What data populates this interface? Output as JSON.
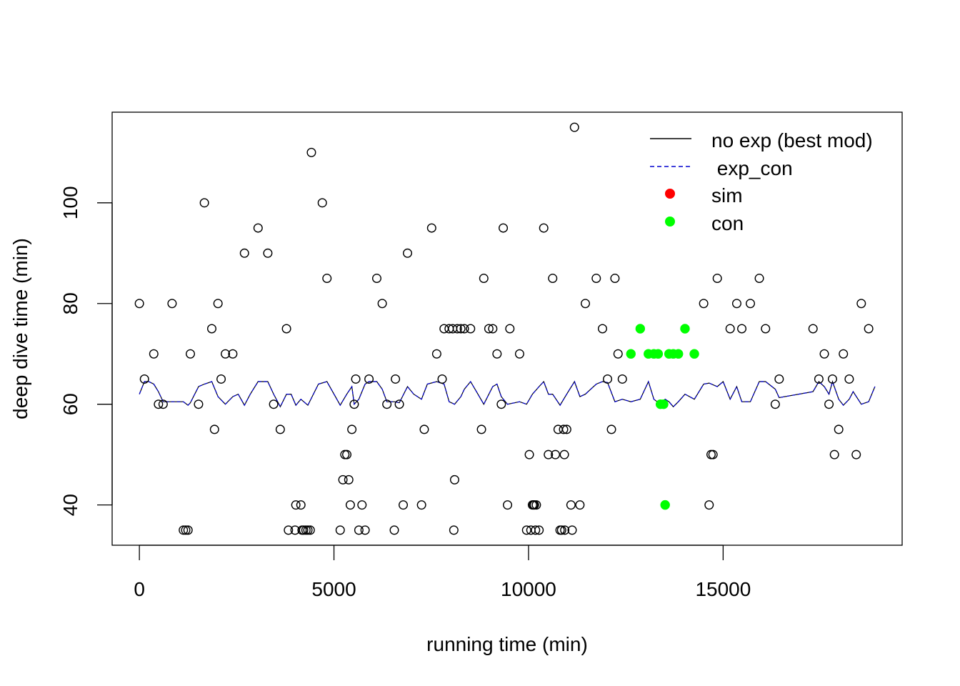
{
  "chart_data": {
    "type": "scatter",
    "title": "",
    "xlabel": "running time (min)",
    "ylabel": "deep dive time (min)",
    "xlim": [
      -700,
      19600
    ],
    "ylim": [
      32,
      118
    ],
    "xticks": [
      0,
      5000,
      10000,
      15000
    ],
    "yticks": [
      40,
      60,
      80,
      100
    ],
    "grid": false,
    "legend_position": "top-right",
    "legend": [
      {
        "label": "no exp (best mod)",
        "kind": "line",
        "color": "#000000"
      },
      {
        "label": " exp_con",
        "kind": "dashed-line",
        "color": "#0000cd"
      },
      {
        "label": "sim",
        "kind": "filled-point",
        "color": "#ff0000"
      },
      {
        "label": "con",
        "kind": "filled-point",
        "color": "#00ff00"
      }
    ],
    "series": [
      {
        "kind": "open-points",
        "color": "#000000",
        "points": [
          [
            0,
            80
          ],
          [
            130,
            65
          ],
          [
            370,
            70
          ],
          [
            490,
            60
          ],
          [
            610,
            60
          ],
          [
            840,
            80
          ],
          [
            1130,
            35
          ],
          [
            1190,
            35
          ],
          [
            1250,
            35
          ],
          [
            1310,
            70
          ],
          [
            1520,
            60
          ],
          [
            1670,
            100
          ],
          [
            1860,
            75
          ],
          [
            1930,
            55
          ],
          [
            2020,
            80
          ],
          [
            2100,
            65
          ],
          [
            2210,
            70
          ],
          [
            2400,
            70
          ],
          [
            2700,
            90
          ],
          [
            3050,
            95
          ],
          [
            3300,
            90
          ],
          [
            3450,
            60
          ],
          [
            3620,
            55
          ],
          [
            3780,
            75
          ],
          [
            3830,
            35
          ],
          [
            4000,
            35
          ],
          [
            4020,
            40
          ],
          [
            4150,
            40
          ],
          [
            4180,
            35
          ],
          [
            4220,
            35
          ],
          [
            4280,
            35
          ],
          [
            4330,
            35
          ],
          [
            4390,
            35
          ],
          [
            4420,
            110
          ],
          [
            4700,
            100
          ],
          [
            4820,
            85
          ],
          [
            5160,
            35
          ],
          [
            5230,
            45
          ],
          [
            5280,
            50
          ],
          [
            5330,
            50
          ],
          [
            5380,
            45
          ],
          [
            5420,
            40
          ],
          [
            5460,
            55
          ],
          [
            5520,
            60
          ],
          [
            5560,
            65
          ],
          [
            5640,
            35
          ],
          [
            5720,
            40
          ],
          [
            5800,
            35
          ],
          [
            5900,
            65
          ],
          [
            6100,
            85
          ],
          [
            6240,
            80
          ],
          [
            6360,
            60
          ],
          [
            6550,
            35
          ],
          [
            6580,
            65
          ],
          [
            6680,
            60
          ],
          [
            6780,
            40
          ],
          [
            6890,
            90
          ],
          [
            7250,
            40
          ],
          [
            7320,
            55
          ],
          [
            7510,
            95
          ],
          [
            7640,
            70
          ],
          [
            7780,
            65
          ],
          [
            7830,
            75
          ],
          [
            7960,
            75
          ],
          [
            8050,
            75
          ],
          [
            8080,
            35
          ],
          [
            8100,
            45
          ],
          [
            8170,
            75
          ],
          [
            8260,
            75
          ],
          [
            8350,
            75
          ],
          [
            8510,
            75
          ],
          [
            8790,
            55
          ],
          [
            8850,
            85
          ],
          [
            8980,
            75
          ],
          [
            9080,
            75
          ],
          [
            9190,
            70
          ],
          [
            9300,
            60
          ],
          [
            9350,
            95
          ],
          [
            9460,
            40
          ],
          [
            9520,
            75
          ],
          [
            9770,
            70
          ],
          [
            9950,
            35
          ],
          [
            10020,
            50
          ],
          [
            10060,
            35
          ],
          [
            10100,
            40
          ],
          [
            10130,
            40
          ],
          [
            10150,
            40
          ],
          [
            10180,
            35
          ],
          [
            10200,
            40
          ],
          [
            10270,
            35
          ],
          [
            10390,
            95
          ],
          [
            10510,
            50
          ],
          [
            10620,
            85
          ],
          [
            10690,
            50
          ],
          [
            10760,
            55
          ],
          [
            10810,
            35
          ],
          [
            10850,
            35
          ],
          [
            10900,
            55
          ],
          [
            10920,
            50
          ],
          [
            10930,
            35
          ],
          [
            10980,
            55
          ],
          [
            11090,
            40
          ],
          [
            11120,
            35
          ],
          [
            11180,
            115
          ],
          [
            11320,
            40
          ],
          [
            11460,
            80
          ],
          [
            11740,
            85
          ],
          [
            11900,
            75
          ],
          [
            12030,
            65
          ],
          [
            12130,
            55
          ],
          [
            12220,
            85
          ],
          [
            12300,
            70
          ],
          [
            12410,
            65
          ],
          [
            14500,
            80
          ],
          [
            14640,
            40
          ],
          [
            14690,
            50
          ],
          [
            14740,
            50
          ],
          [
            14850,
            85
          ],
          [
            15180,
            75
          ],
          [
            15350,
            80
          ],
          [
            15480,
            75
          ],
          [
            15700,
            80
          ],
          [
            15930,
            85
          ],
          [
            16090,
            75
          ],
          [
            16340,
            60
          ],
          [
            16440,
            65
          ],
          [
            17310,
            75
          ],
          [
            17460,
            65
          ],
          [
            17600,
            70
          ],
          [
            17720,
            60
          ],
          [
            17810,
            65
          ],
          [
            17860,
            50
          ],
          [
            17970,
            55
          ],
          [
            18090,
            70
          ],
          [
            18240,
            65
          ],
          [
            18420,
            50
          ],
          [
            18550,
            80
          ],
          [
            18740,
            75
          ]
        ]
      },
      {
        "name": "con",
        "kind": "filled-points",
        "color": "#00ff00",
        "points": [
          [
            12630,
            70
          ],
          [
            12870,
            75
          ],
          [
            13080,
            70
          ],
          [
            13220,
            70
          ],
          [
            13330,
            70
          ],
          [
            13390,
            60
          ],
          [
            13470,
            60
          ],
          [
            13510,
            40
          ],
          [
            13610,
            70
          ],
          [
            13720,
            70
          ],
          [
            13850,
            70
          ],
          [
            14020,
            75
          ],
          [
            14260,
            70
          ]
        ]
      },
      {
        "name": "no exp (best mod)",
        "kind": "line",
        "color": "#000000",
        "points": [
          [
            0,
            62
          ],
          [
            130,
            64.5
          ],
          [
            240,
            64.5
          ],
          [
            370,
            64
          ],
          [
            490,
            62.5
          ],
          [
            610,
            60.5
          ],
          [
            840,
            60.5
          ],
          [
            1130,
            60.5
          ],
          [
            1250,
            59.8
          ],
          [
            1310,
            60.3
          ],
          [
            1520,
            63.5
          ],
          [
            1670,
            64
          ],
          [
            1860,
            64.5
          ],
          [
            2020,
            61.5
          ],
          [
            2210,
            60
          ],
          [
            2400,
            61.5
          ],
          [
            2540,
            62
          ],
          [
            2700,
            59.8
          ],
          [
            2850,
            62
          ],
          [
            3050,
            64.5
          ],
          [
            3300,
            64.5
          ],
          [
            3450,
            62
          ],
          [
            3620,
            59.5
          ],
          [
            3780,
            62
          ],
          [
            3900,
            62
          ],
          [
            4020,
            59.8
          ],
          [
            4150,
            61
          ],
          [
            4330,
            59.8
          ],
          [
            4600,
            64
          ],
          [
            4820,
            64.5
          ],
          [
            5000,
            62
          ],
          [
            5160,
            59.8
          ],
          [
            5330,
            62
          ],
          [
            5460,
            63.5
          ],
          [
            5520,
            60
          ],
          [
            5640,
            61
          ],
          [
            5800,
            64
          ],
          [
            5900,
            64.5
          ],
          [
            6100,
            64.5
          ],
          [
            6240,
            63
          ],
          [
            6360,
            60.5
          ],
          [
            6550,
            60.5
          ],
          [
            6680,
            60.3
          ],
          [
            6890,
            63.5
          ],
          [
            7050,
            62
          ],
          [
            7250,
            61
          ],
          [
            7400,
            64
          ],
          [
            7640,
            64.5
          ],
          [
            7830,
            64
          ],
          [
            7960,
            60.5
          ],
          [
            8100,
            60
          ],
          [
            8260,
            61.5
          ],
          [
            8350,
            63
          ],
          [
            8510,
            64.5
          ],
          [
            8700,
            62
          ],
          [
            8850,
            60
          ],
          [
            9080,
            63.5
          ],
          [
            9190,
            64
          ],
          [
            9300,
            61.5
          ],
          [
            9460,
            60
          ],
          [
            9770,
            60.5
          ],
          [
            9950,
            60
          ],
          [
            10100,
            62
          ],
          [
            10270,
            63.5
          ],
          [
            10390,
            64.5
          ],
          [
            10510,
            62
          ],
          [
            10620,
            62
          ],
          [
            10810,
            59.8
          ],
          [
            10980,
            62
          ],
          [
            11180,
            64.5
          ],
          [
            11320,
            61.5
          ],
          [
            11460,
            62
          ],
          [
            11600,
            63
          ],
          [
            11740,
            64
          ],
          [
            11900,
            64.5
          ],
          [
            12030,
            64.3
          ],
          [
            12220,
            60.5
          ],
          [
            12410,
            61
          ],
          [
            12630,
            60.5
          ],
          [
            12870,
            61
          ],
          [
            13080,
            64.5
          ],
          [
            13220,
            61
          ],
          [
            13390,
            60
          ],
          [
            13510,
            61
          ],
          [
            13610,
            60.5
          ],
          [
            13720,
            59.5
          ],
          [
            13850,
            60.5
          ],
          [
            14020,
            62
          ],
          [
            14260,
            61
          ],
          [
            14500,
            64
          ],
          [
            14640,
            64.2
          ],
          [
            14850,
            63.5
          ],
          [
            15000,
            64.5
          ],
          [
            15180,
            61
          ],
          [
            15350,
            63.5
          ],
          [
            15480,
            60.5
          ],
          [
            15700,
            60.5
          ],
          [
            15930,
            64.5
          ],
          [
            16090,
            64.5
          ],
          [
            16340,
            63
          ],
          [
            16440,
            61.3
          ],
          [
            17310,
            62.5
          ],
          [
            17460,
            64.5
          ],
          [
            17600,
            63.5
          ],
          [
            17720,
            62
          ],
          [
            17810,
            64.5
          ],
          [
            17970,
            61
          ],
          [
            18090,
            59.8
          ],
          [
            18240,
            61
          ],
          [
            18340,
            62.5
          ],
          [
            18550,
            60
          ],
          [
            18740,
            60.5
          ],
          [
            18900,
            63.5
          ]
        ]
      }
    ]
  }
}
